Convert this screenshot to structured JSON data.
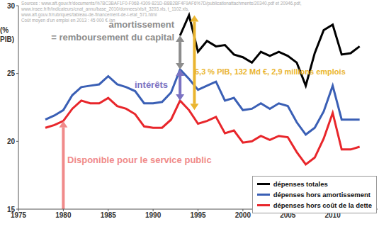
{
  "chart_data": {
    "type": "line",
    "y_label": "(% PIB)",
    "source": [
      "Sources : www.aft.gouv.fr/documents/%7BC3BAF1F0-F068-4309-821D-B8B2BF4F9AF6%7D/publicationattachments/20340.pdf et 20946.pdf,",
      "www.insee.fr/fr/indicateurs/cnat_annu/base_2010/donnees/xls/t_3203.xls, t_1102.xls,",
      "www.aft.gouv.fr/rubriques/tableau-de-financement-de-l-etat_571.html",
      "Coût moyen d'un emploi en 2013 : 45 000 € /an"
    ],
    "annotations": [
      "amortissement",
      "= remboursement du capital",
      "intérêts",
      "6,3 % PIB, 132 Md €, 2,9 millions emplois",
      "Disponible pour le service public"
    ],
    "x": [
      1978,
      1979,
      1980,
      1981,
      1982,
      1983,
      1984,
      1985,
      1986,
      1987,
      1988,
      1989,
      1990,
      1991,
      1992,
      1993,
      1994,
      1995,
      1996,
      1997,
      1998,
      1999,
      2000,
      2001,
      2002,
      2003,
      2004,
      2005,
      2006,
      2007,
      2008,
      2009,
      2010,
      2011,
      2012,
      2013
    ],
    "series": [
      {
        "name": "dépenses totales",
        "color": "#000000",
        "values": [
          null,
          null,
          null,
          null,
          null,
          null,
          null,
          null,
          null,
          null,
          null,
          null,
          null,
          null,
          null,
          27.8,
          29.3,
          26.6,
          27.4,
          27.0,
          27.1,
          26.4,
          26.2,
          25.8,
          26.6,
          26.3,
          26.6,
          26.3,
          25.8,
          24.1,
          26.5,
          28.2,
          28.6,
          26.4,
          26.5,
          27.0
        ]
      },
      {
        "name": "dépenses hors amortissement",
        "color": "#3a5fb5",
        "values": [
          21.6,
          21.9,
          22.3,
          23.4,
          24.0,
          24.1,
          24.2,
          24.8,
          24.2,
          24.0,
          23.7,
          22.8,
          22.8,
          22.9,
          23.6,
          25.3,
          24.6,
          23.8,
          24.1,
          24.4,
          23.0,
          23.2,
          22.3,
          22.4,
          22.8,
          22.4,
          22.8,
          22.6,
          21.4,
          20.5,
          21.0,
          22.2,
          24.1,
          21.6,
          21.6,
          21.6
        ]
      },
      {
        "name": "dépenses hors coût de la dette",
        "color": "#e8262b",
        "values": [
          21.0,
          21.2,
          21.5,
          22.4,
          23.0,
          22.8,
          22.8,
          23.2,
          22.6,
          22.4,
          22.0,
          21.1,
          21.0,
          21.0,
          21.6,
          23.0,
          22.3,
          21.3,
          21.5,
          21.8,
          20.6,
          20.8,
          19.9,
          20.0,
          20.4,
          20.1,
          20.4,
          20.3,
          19.2,
          18.3,
          18.8,
          20.2,
          22.1,
          19.4,
          19.4,
          19.6
        ]
      }
    ],
    "xlim": [
      1975,
      2015
    ],
    "xticks": [
      1975,
      1980,
      1985,
      1990,
      1995,
      2000,
      2005,
      2010
    ],
    "ylim": [
      15,
      30
    ],
    "yticks": [
      15,
      20,
      25,
      30
    ],
    "grid": false,
    "legend": "lower right"
  }
}
